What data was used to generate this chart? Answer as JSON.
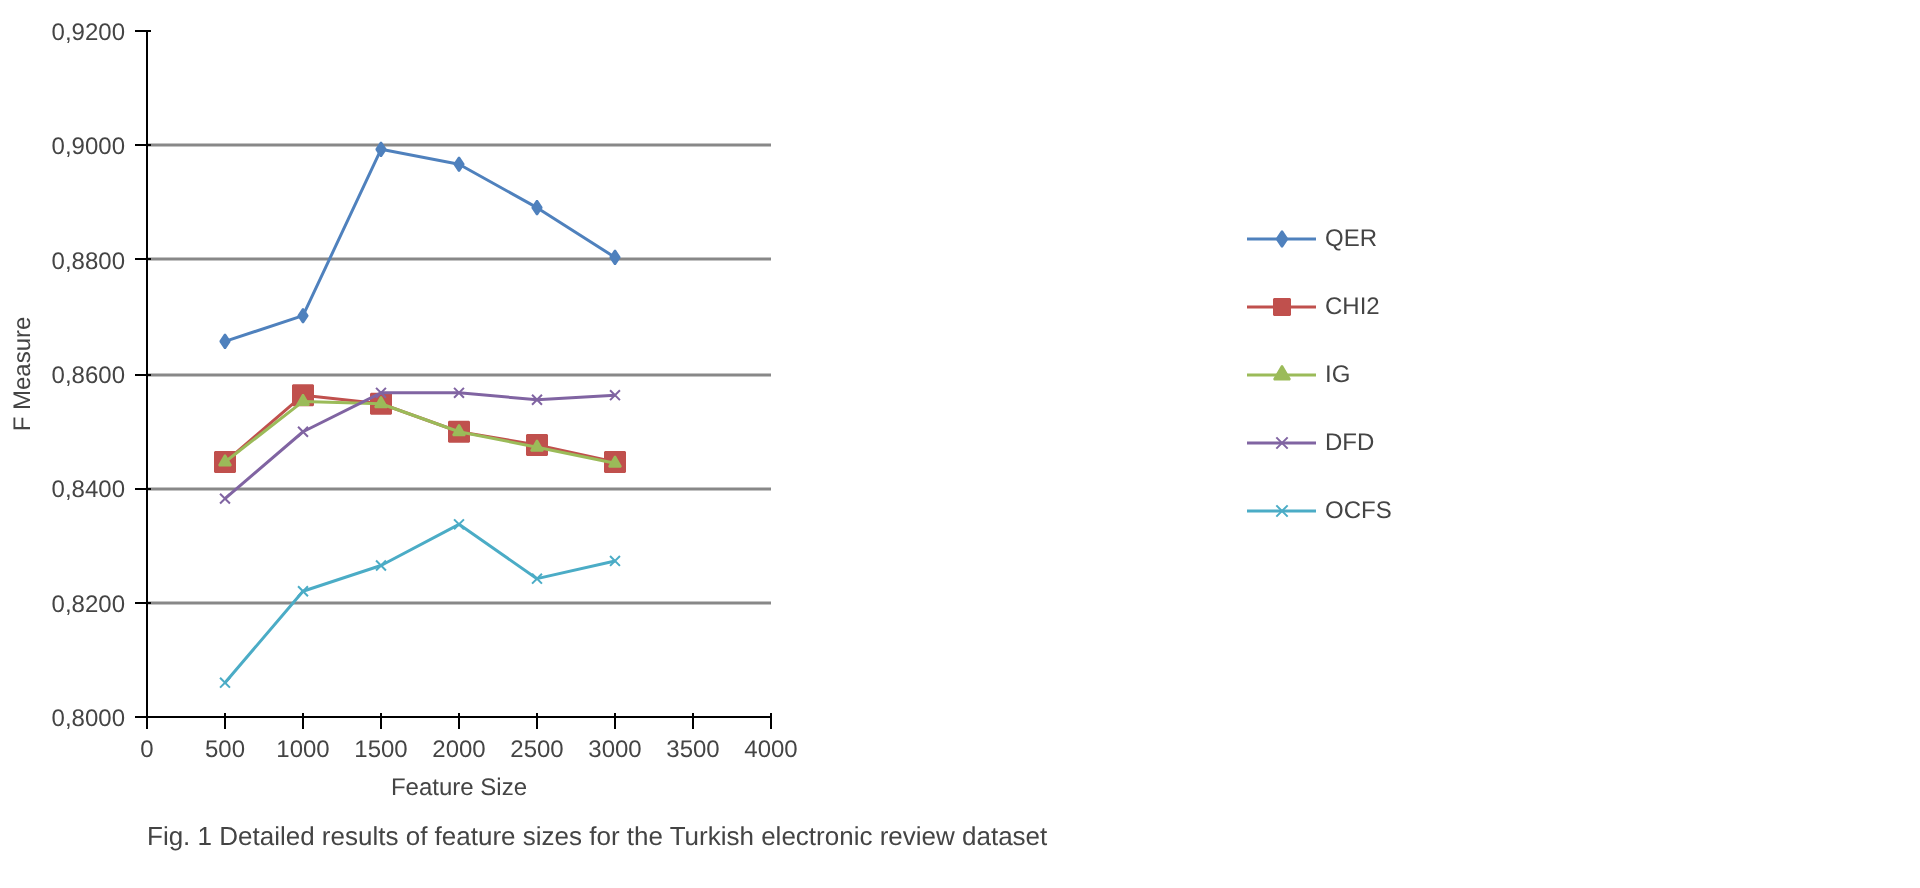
{
  "chart_data": {
    "type": "line",
    "xlabel": "Feature Size",
    "ylabel": "F Measure",
    "annotations": [
      "Fig. 1  Detailed results of feature sizes for the Turkish electronic review dataset"
    ],
    "x": [
      500,
      1000,
      1500,
      2000,
      2500,
      3000
    ],
    "series": [
      {
        "name": "QER",
        "color": "#4f81bd",
        "marker": "diamond",
        "values": [
          0.8657,
          0.8702,
          0.8993,
          0.8967,
          0.8891,
          0.8804
        ]
      },
      {
        "name": "CHI2",
        "color": "#c0504d",
        "marker": "square",
        "values": [
          0.8446,
          0.8563,
          0.8548,
          0.8499,
          0.8476,
          0.8446
        ]
      },
      {
        "name": "IG",
        "color": "#9bbb59",
        "marker": "triangle",
        "values": [
          0.8446,
          0.8552,
          0.8548,
          0.8499,
          0.8472,
          0.8444
        ]
      },
      {
        "name": "DFD",
        "color": "#8064a2",
        "marker": "cross",
        "values": [
          0.8382,
          0.8499,
          0.8567,
          0.8567,
          0.8555,
          0.8563
        ]
      },
      {
        "name": "OCFS",
        "color": "#4bacc6",
        "marker": "cross",
        "values": [
          0.806,
          0.822,
          0.8265,
          0.8337,
          0.8242,
          0.8273
        ]
      }
    ],
    "xlim": [
      0,
      4000
    ],
    "xticks": [
      {
        "value": 0,
        "label": "0"
      },
      {
        "value": 500,
        "label": "500"
      },
      {
        "value": 1000,
        "label": "1000"
      },
      {
        "value": 1500,
        "label": "1500"
      },
      {
        "value": 2000,
        "label": "2000"
      },
      {
        "value": 2500,
        "label": "2500"
      },
      {
        "value": 3000,
        "label": "3000"
      },
      {
        "value": 3500,
        "label": "3500"
      },
      {
        "value": 4000,
        "label": "4000"
      }
    ],
    "ylim": [
      0.8,
      0.92
    ],
    "yticks": [
      {
        "value": 0.8,
        "label": "0,8000"
      },
      {
        "value": 0.82,
        "label": "0,8200"
      },
      {
        "value": 0.84,
        "label": "0,8400"
      },
      {
        "value": 0.86,
        "label": "0,8600"
      },
      {
        "value": 0.88,
        "label": "0,8800"
      },
      {
        "value": 0.9,
        "label": "0,9000"
      },
      {
        "value": 0.92,
        "label": "0,9200"
      }
    ],
    "grid": "y",
    "legend": "right",
    "line_style": "solid"
  }
}
